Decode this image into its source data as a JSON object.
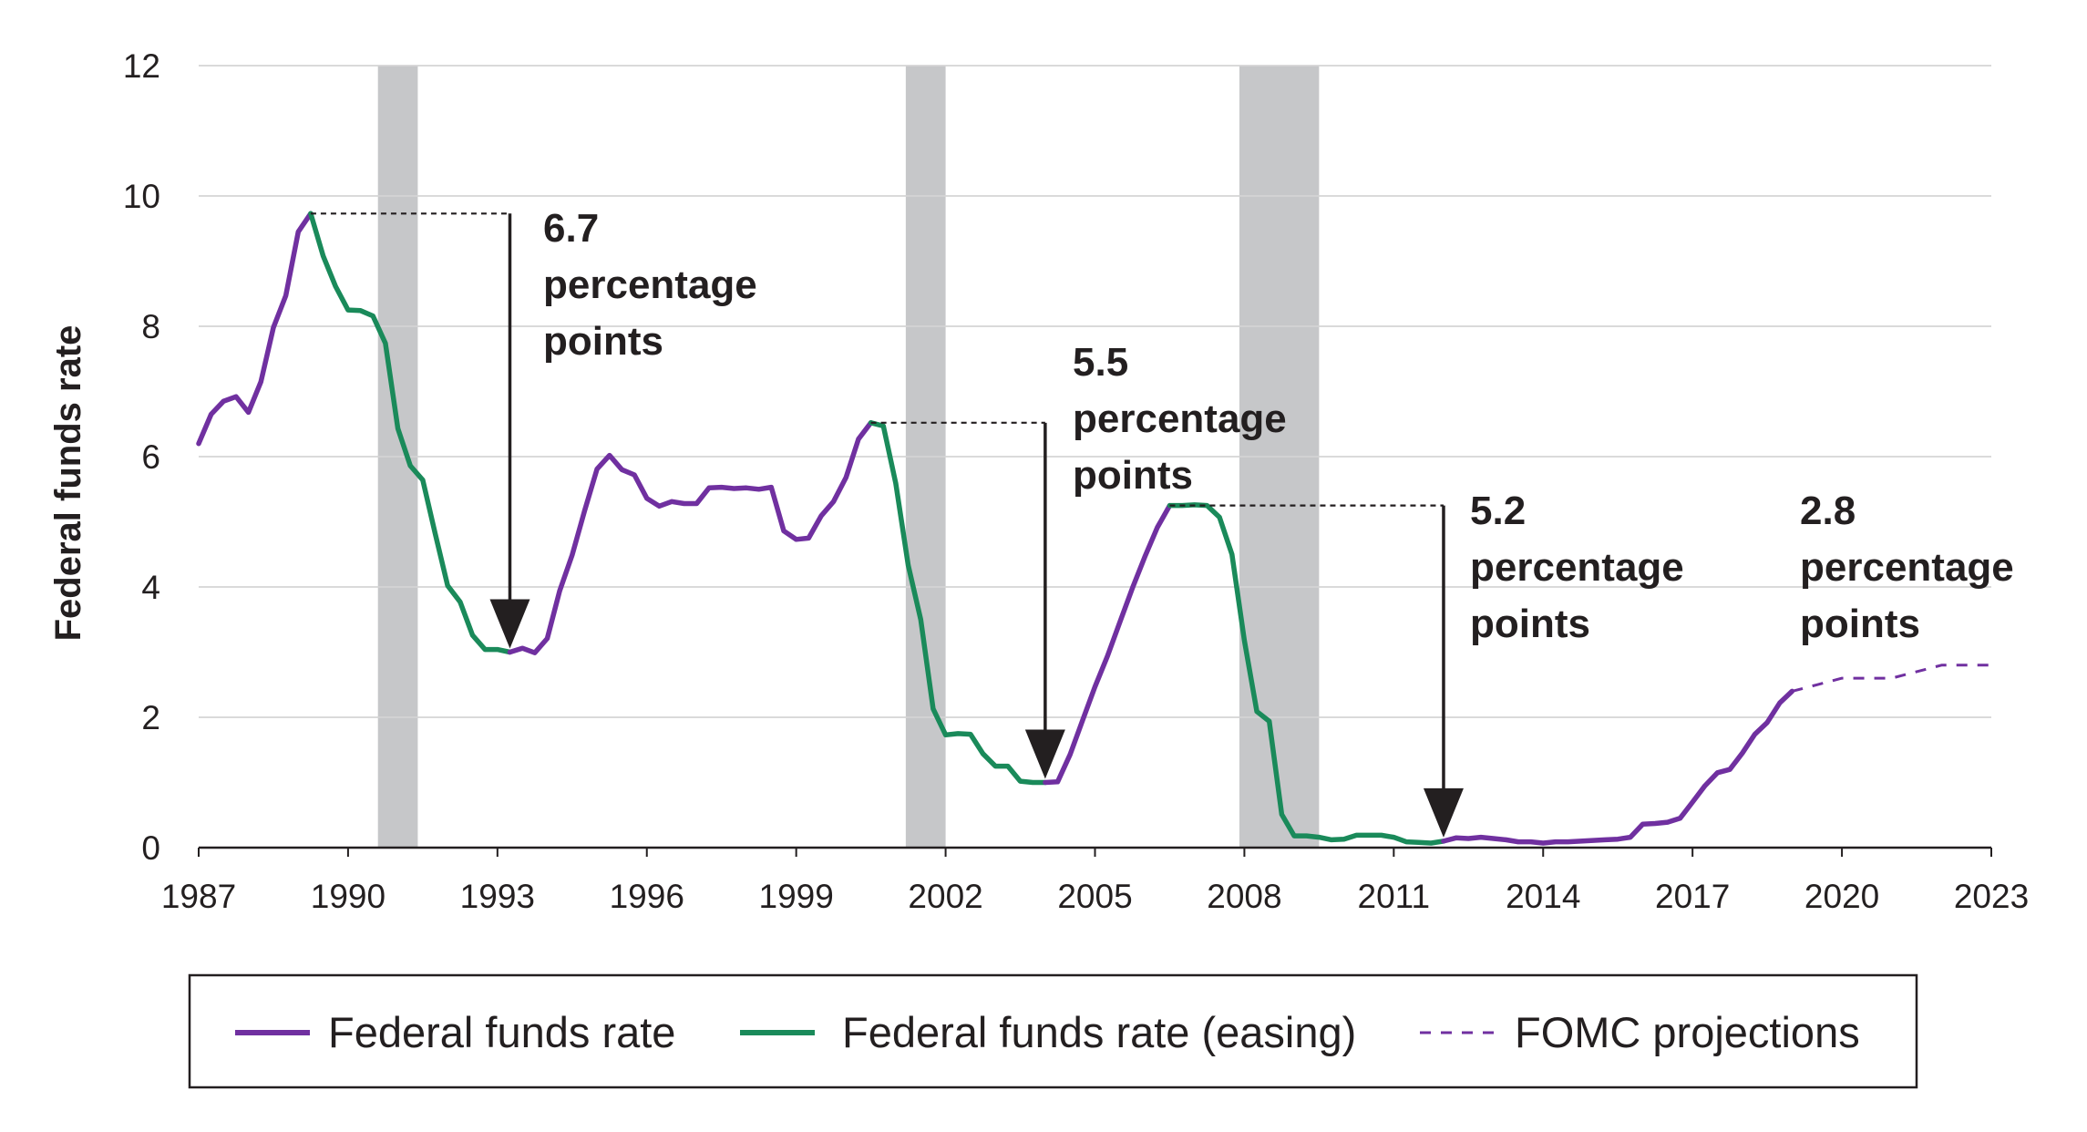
{
  "chart_data": {
    "type": "line",
    "title": "",
    "xlabel": "",
    "ylabel": "Federal funds rate",
    "xlim": [
      1987,
      2023
    ],
    "ylim": [
      0,
      12
    ],
    "x_ticks": [
      "1987",
      "1990",
      "1993",
      "1996",
      "1999",
      "2002",
      "2005",
      "2008",
      "2011",
      "2014",
      "2017",
      "2020",
      "2023"
    ],
    "y_ticks": [
      "0",
      "2",
      "4",
      "6",
      "8",
      "10",
      "12"
    ],
    "grid": "horizontal",
    "legend_position": "bottom",
    "legend": [
      {
        "label": "Federal funds rate",
        "style": "solid",
        "color": "#7030a0"
      },
      {
        "label": "Federal funds rate (easing)",
        "style": "solid",
        "color": "#1a8a5a"
      },
      {
        "label": "FOMC projections",
        "style": "dashed",
        "color": "#7030a0"
      }
    ],
    "recessions": [
      [
        1990.6,
        1991.4
      ],
      [
        2001.2,
        2002.0
      ],
      [
        2007.9,
        2009.5
      ]
    ],
    "series": [
      {
        "name": "Federal funds rate",
        "color": "#7030a0",
        "style": "solid",
        "points": [
          [
            1987.0,
            6.2
          ],
          [
            1987.25,
            6.65
          ],
          [
            1987.5,
            6.85
          ],
          [
            1987.75,
            6.92
          ],
          [
            1988.0,
            6.68
          ],
          [
            1988.25,
            7.15
          ],
          [
            1988.5,
            7.98
          ],
          [
            1988.75,
            8.47
          ],
          [
            1989.0,
            9.45
          ],
          [
            1989.25,
            9.73
          ]
        ]
      },
      {
        "name": "Federal funds rate (easing)",
        "color": "#1a8a5a",
        "style": "solid",
        "points": [
          [
            1989.25,
            9.73
          ],
          [
            1989.5,
            9.08
          ],
          [
            1989.75,
            8.61
          ],
          [
            1990.0,
            8.25
          ],
          [
            1990.25,
            8.24
          ],
          [
            1990.5,
            8.16
          ],
          [
            1990.75,
            7.74
          ],
          [
            1991.0,
            6.43
          ],
          [
            1991.25,
            5.86
          ],
          [
            1991.5,
            5.64
          ],
          [
            1991.75,
            4.82
          ],
          [
            1992.0,
            4.02
          ],
          [
            1992.25,
            3.77
          ],
          [
            1992.5,
            3.26
          ],
          [
            1992.75,
            3.04
          ],
          [
            1993.0,
            3.04
          ],
          [
            1993.25,
            3.0
          ]
        ]
      },
      {
        "name": "Federal funds rate",
        "color": "#7030a0",
        "style": "solid",
        "points": [
          [
            1993.25,
            3.0
          ],
          [
            1993.5,
            3.06
          ],
          [
            1993.75,
            2.99
          ],
          [
            1994.0,
            3.21
          ],
          [
            1994.25,
            3.94
          ],
          [
            1994.5,
            4.49
          ],
          [
            1994.75,
            5.17
          ],
          [
            1995.0,
            5.81
          ],
          [
            1995.25,
            6.02
          ],
          [
            1995.5,
            5.8
          ],
          [
            1995.75,
            5.72
          ],
          [
            1996.0,
            5.36
          ],
          [
            1996.25,
            5.24
          ],
          [
            1996.5,
            5.31
          ],
          [
            1996.75,
            5.28
          ],
          [
            1997.0,
            5.28
          ],
          [
            1997.25,
            5.52
          ],
          [
            1997.5,
            5.53
          ],
          [
            1997.75,
            5.51
          ],
          [
            1998.0,
            5.52
          ],
          [
            1998.25,
            5.5
          ],
          [
            1998.5,
            5.53
          ],
          [
            1998.75,
            4.86
          ],
          [
            1999.0,
            4.73
          ],
          [
            1999.25,
            4.75
          ],
          [
            1999.5,
            5.09
          ],
          [
            1999.75,
            5.31
          ],
          [
            2000.0,
            5.68
          ],
          [
            2000.25,
            6.27
          ],
          [
            2000.5,
            6.52
          ]
        ]
      },
      {
        "name": "Federal funds rate (easing)",
        "color": "#1a8a5a",
        "style": "solid",
        "points": [
          [
            2000.5,
            6.52
          ],
          [
            2000.75,
            6.47
          ],
          [
            2001.0,
            5.59
          ],
          [
            2001.25,
            4.33
          ],
          [
            2001.5,
            3.5
          ],
          [
            2001.75,
            2.13
          ],
          [
            2002.0,
            1.73
          ],
          [
            2002.25,
            1.75
          ],
          [
            2002.5,
            1.74
          ],
          [
            2002.75,
            1.44
          ],
          [
            2003.0,
            1.25
          ],
          [
            2003.25,
            1.25
          ],
          [
            2003.5,
            1.02
          ],
          [
            2003.75,
            1.0
          ],
          [
            2004.0,
            1.0
          ]
        ]
      },
      {
        "name": "Federal funds rate",
        "color": "#7030a0",
        "style": "solid",
        "points": [
          [
            2004.0,
            1.0
          ],
          [
            2004.25,
            1.01
          ],
          [
            2004.5,
            1.43
          ],
          [
            2004.75,
            1.95
          ],
          [
            2005.0,
            2.47
          ],
          [
            2005.25,
            2.94
          ],
          [
            2005.5,
            3.46
          ],
          [
            2005.75,
            3.98
          ],
          [
            2006.0,
            4.46
          ],
          [
            2006.25,
            4.91
          ],
          [
            2006.5,
            5.25
          ]
        ]
      },
      {
        "name": "Federal funds rate (easing)",
        "color": "#1a8a5a",
        "style": "solid",
        "points": [
          [
            2006.5,
            5.25
          ],
          [
            2006.75,
            5.25
          ],
          [
            2007.0,
            5.26
          ],
          [
            2007.25,
            5.25
          ],
          [
            2007.5,
            5.07
          ],
          [
            2007.75,
            4.5
          ],
          [
            2008.0,
            3.18
          ],
          [
            2008.25,
            2.09
          ],
          [
            2008.5,
            1.94
          ],
          [
            2008.75,
            0.51
          ],
          [
            2009.0,
            0.18
          ],
          [
            2009.25,
            0.18
          ],
          [
            2009.5,
            0.16
          ],
          [
            2009.75,
            0.12
          ],
          [
            2010.0,
            0.13
          ],
          [
            2010.25,
            0.19
          ],
          [
            2010.5,
            0.19
          ],
          [
            2010.75,
            0.19
          ],
          [
            2011.0,
            0.16
          ],
          [
            2011.25,
            0.09
          ],
          [
            2011.5,
            0.08
          ],
          [
            2011.75,
            0.07
          ],
          [
            2012.0,
            0.1
          ]
        ]
      },
      {
        "name": "Federal funds rate",
        "color": "#7030a0",
        "style": "solid",
        "points": [
          [
            2012.0,
            0.1
          ],
          [
            2012.25,
            0.15
          ],
          [
            2012.5,
            0.14
          ],
          [
            2012.75,
            0.16
          ],
          [
            2013.0,
            0.14
          ],
          [
            2013.25,
            0.12
          ],
          [
            2013.5,
            0.09
          ],
          [
            2013.75,
            0.09
          ],
          [
            2014.0,
            0.07
          ],
          [
            2014.25,
            0.09
          ],
          [
            2014.5,
            0.09
          ],
          [
            2014.75,
            0.1
          ],
          [
            2015.0,
            0.11
          ],
          [
            2015.25,
            0.12
          ],
          [
            2015.5,
            0.13
          ],
          [
            2015.75,
            0.16
          ],
          [
            2016.0,
            0.36
          ],
          [
            2016.25,
            0.37
          ],
          [
            2016.5,
            0.39
          ],
          [
            2016.75,
            0.45
          ],
          [
            2017.0,
            0.7
          ],
          [
            2017.25,
            0.95
          ],
          [
            2017.5,
            1.15
          ],
          [
            2017.75,
            1.2
          ],
          [
            2018.0,
            1.45
          ],
          [
            2018.25,
            1.74
          ],
          [
            2018.5,
            1.92
          ],
          [
            2018.75,
            2.22
          ],
          [
            2019.0,
            2.4
          ]
        ]
      },
      {
        "name": "FOMC projections",
        "color": "#7030a0",
        "style": "dashed",
        "points": [
          [
            2019.0,
            2.4
          ],
          [
            2019.5,
            2.5
          ],
          [
            2020.0,
            2.6
          ],
          [
            2021.0,
            2.6
          ],
          [
            2022.0,
            2.8
          ],
          [
            2023.0,
            2.8
          ]
        ]
      }
    ],
    "annotations": [
      {
        "lines": [
          "6.7",
          "percentage",
          "points"
        ],
        "peak": [
          1989.25,
          9.73
        ],
        "trough": [
          1993.25,
          3.0
        ],
        "arrow_x": 1993.25
      },
      {
        "lines": [
          "5.5",
          "percentage",
          "points"
        ],
        "peak": [
          2000.5,
          6.52
        ],
        "trough": [
          2004.0,
          1.0
        ],
        "arrow_x": 2004.0
      },
      {
        "lines": [
          "5.2",
          "percentage",
          "points"
        ],
        "peak": [
          2006.5,
          5.25
        ],
        "trough": [
          2012.0,
          0.1
        ],
        "arrow_x": 2012.0
      },
      {
        "lines": [
          "2.8",
          "percentage",
          "points"
        ]
      }
    ]
  }
}
